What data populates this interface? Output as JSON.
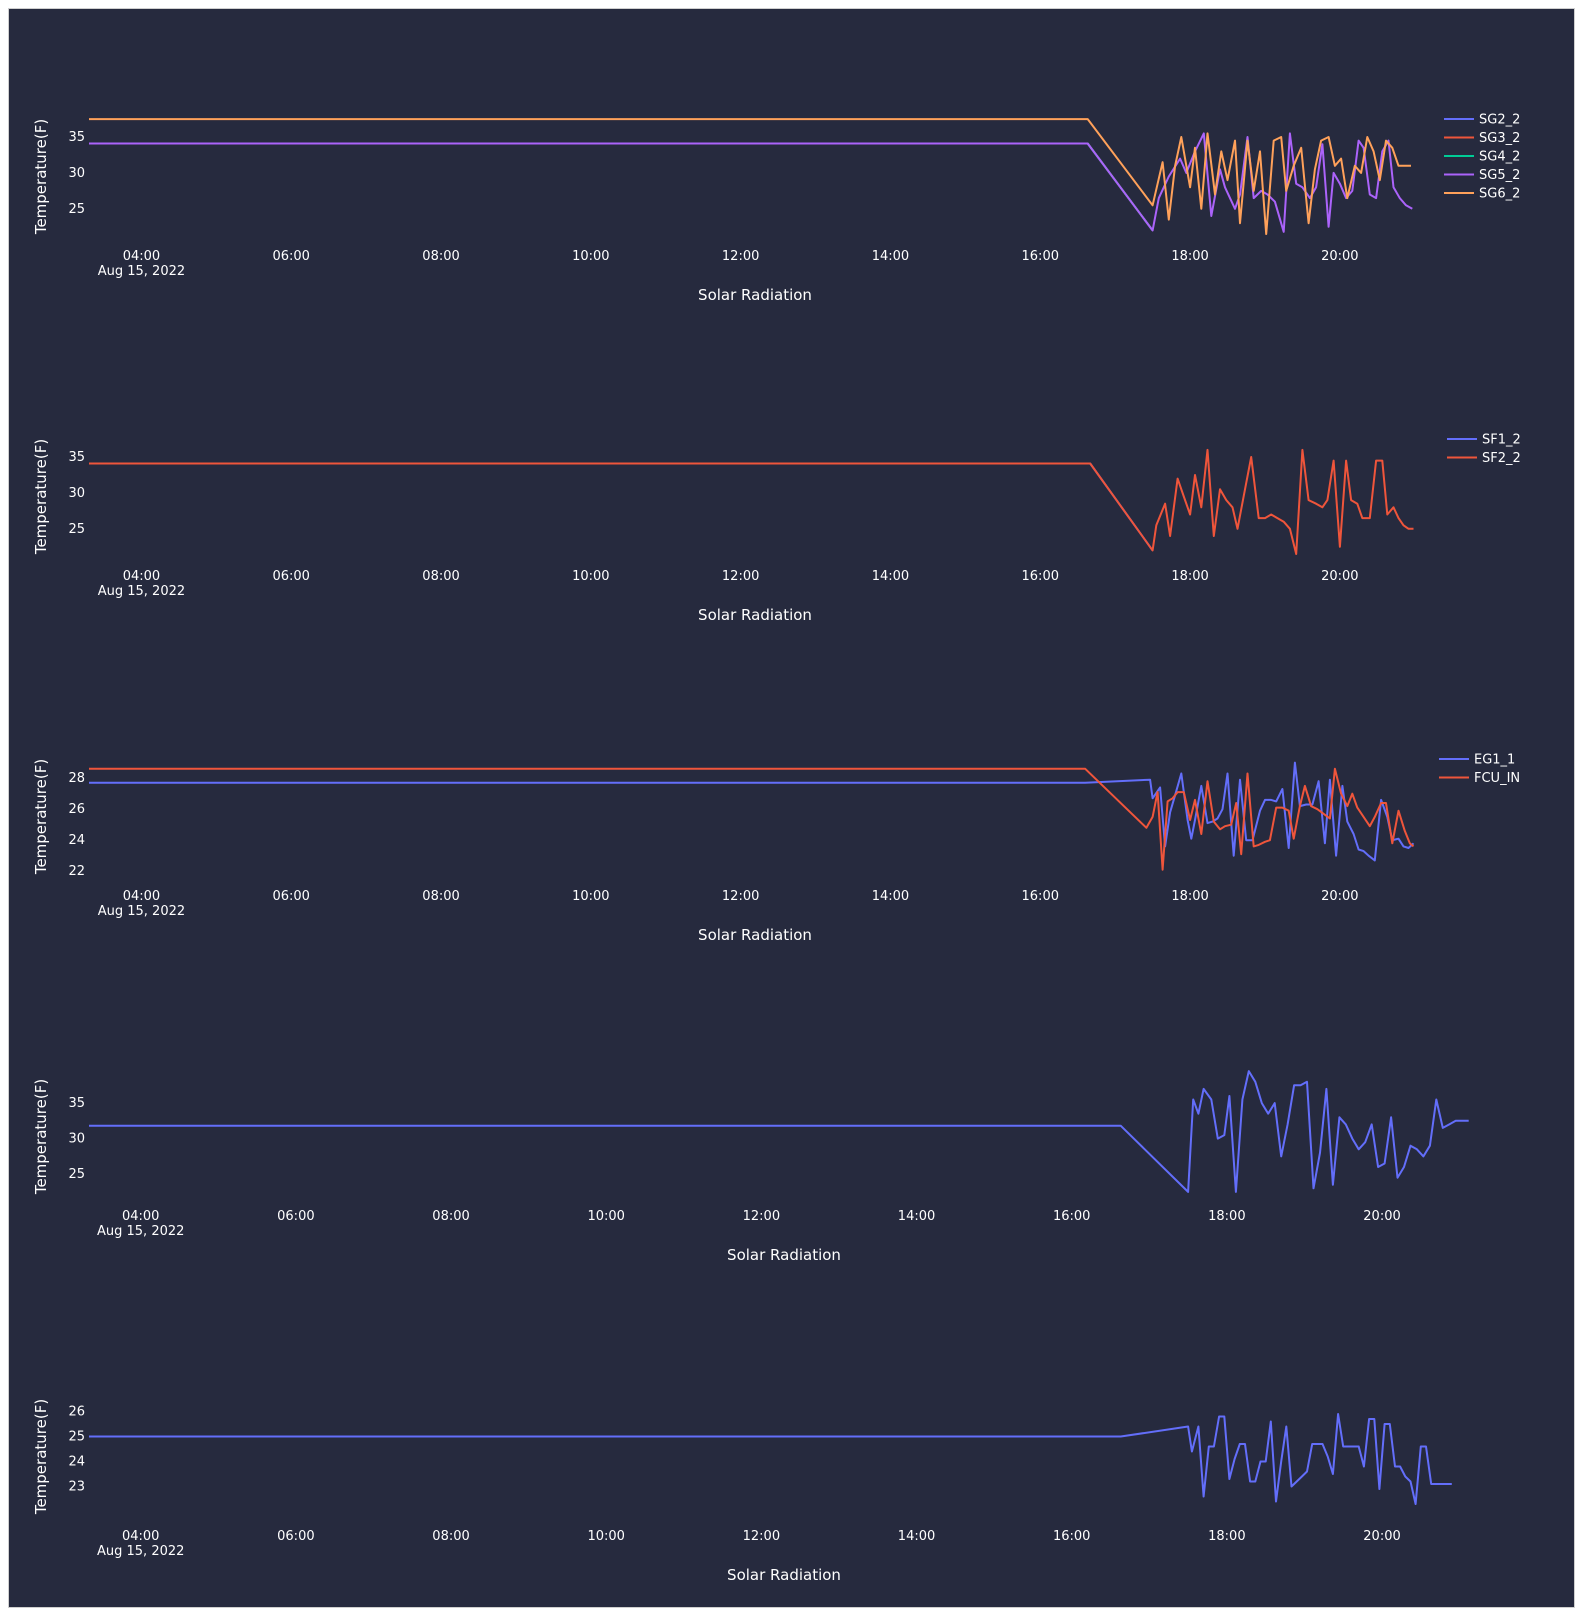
{
  "chart_data": [
    {
      "type": "line",
      "xlabel": "Solar Radiation",
      "ylabel": "Temperature(F)",
      "xlim": [
        "03:18",
        "21:05"
      ],
      "ylim": [
        20.8,
        39.6
      ],
      "xticks": [
        "04:00",
        "06:00",
        "08:00",
        "10:00",
        "12:00",
        "14:00",
        "16:00",
        "18:00",
        "20:00"
      ],
      "xtick_sublabel": "Aug 15, 2022",
      "yticks": [
        25,
        30,
        35
      ],
      "legend_position": "right",
      "series": [
        {
          "name": "SG2_2",
          "color": "#636efa",
          "x": [
            "03:18",
            "16:38",
            "17:30"
          ],
          "y": [
            34.1,
            34.1,
            22.0
          ]
        },
        {
          "name": "SG3_2",
          "color": "#ef553b",
          "x": [
            "03:18",
            "16:38",
            "17:30"
          ],
          "y": [
            34.1,
            34.1,
            22.0
          ]
        },
        {
          "name": "SG4_2",
          "color": "#00cc96",
          "x": [
            "03:18",
            "16:38",
            "17:30"
          ],
          "y": [
            34.1,
            34.1,
            22.0
          ]
        },
        {
          "name": "SG5_2",
          "color": "#ab63fa",
          "x": [
            "03:18",
            "16:38",
            "17:30",
            "17:35",
            "17:43",
            "17:52",
            "17:57",
            "18:04",
            "18:11",
            "18:17",
            "18:24",
            "18:28",
            "18:32",
            "18:36",
            "18:40",
            "18:46",
            "18:51",
            "18:57",
            "19:02",
            "19:08",
            "19:15",
            "19:20",
            "19:25",
            "19:30",
            "19:36",
            "19:41",
            "19:46",
            "19:51",
            "19:55",
            "20:00",
            "20:05",
            "20:10",
            "20:15",
            "20:19",
            "20:24",
            "20:29",
            "20:34",
            "20:39",
            "20:43",
            "20:48",
            "20:53",
            "20:58"
          ],
          "y": [
            34.1,
            34.1,
            22.0,
            26.5,
            29.5,
            32.0,
            30.0,
            33.0,
            35.5,
            24.0,
            30.5,
            28.0,
            26.5,
            25.0,
            27.0,
            35.0,
            26.5,
            27.5,
            27.0,
            26.0,
            21.8,
            35.5,
            28.5,
            28.0,
            26.5,
            28.0,
            34.0,
            22.5,
            30.0,
            28.5,
            26.5,
            27.5,
            34.5,
            33.5,
            27.0,
            26.5,
            33.0,
            34.5,
            28.0,
            26.5,
            25.5,
            25.0
          ]
        },
        {
          "name": "SG6_2",
          "color": "#ffa15a",
          "x": [
            "03:18",
            "16:38",
            "17:30",
            "17:38",
            "17:43",
            "17:48",
            "17:53",
            "18:00",
            "18:04",
            "18:09",
            "18:14",
            "18:20",
            "18:25",
            "18:30",
            "18:36",
            "18:40",
            "18:46",
            "18:51",
            "18:56",
            "19:01",
            "19:07",
            "19:13",
            "19:17",
            "19:23",
            "19:29",
            "19:35",
            "19:40",
            "19:45",
            "19:51",
            "19:56",
            "20:01",
            "20:06",
            "20:12",
            "20:17",
            "20:22",
            "20:27",
            "20:32",
            "20:37",
            "20:42",
            "20:47",
            "20:52",
            "20:57"
          ],
          "y": [
            37.5,
            37.5,
            25.5,
            31.5,
            23.5,
            31.0,
            35.0,
            28.0,
            33.5,
            25.0,
            35.5,
            27.0,
            33.0,
            29.0,
            34.5,
            23.0,
            34.5,
            27.5,
            33.0,
            21.5,
            34.5,
            35.0,
            27.5,
            31.0,
            33.5,
            23.0,
            30.5,
            34.5,
            35.0,
            31.0,
            32.0,
            26.5,
            31.0,
            30.0,
            35.0,
            33.0,
            29.0,
            34.5,
            33.5,
            31.0,
            31.0,
            31.0
          ]
        }
      ]
    },
    {
      "type": "line",
      "xlabel": "Solar Radiation",
      "ylabel": "Temperature(F)",
      "xlim": [
        "03:18",
        "21:05"
      ],
      "ylim": [
        20.8,
        39.6
      ],
      "xticks": [
        "04:00",
        "06:00",
        "08:00",
        "10:00",
        "12:00",
        "14:00",
        "16:00",
        "18:00",
        "20:00"
      ],
      "xtick_sublabel": "Aug 15, 2022",
      "yticks": [
        25,
        30,
        35
      ],
      "legend_position": "right",
      "series": [
        {
          "name": "SF1_2",
          "color": "#636efa",
          "x": [
            "03:18",
            "16:40",
            "17:30"
          ],
          "y": [
            34.1,
            34.1,
            22.0
          ]
        },
        {
          "name": "SF2_2",
          "color": "#ef553b",
          "x": [
            "03:18",
            "16:40",
            "17:30",
            "17:33",
            "17:40",
            "17:44",
            "17:50",
            "17:55",
            "18:00",
            "18:04",
            "18:09",
            "18:14",
            "18:19",
            "18:24",
            "18:29",
            "18:34",
            "18:38",
            "18:44",
            "18:49",
            "18:55",
            "19:00",
            "19:05",
            "19:10",
            "19:15",
            "19:20",
            "19:25",
            "19:30",
            "19:35",
            "19:41",
            "19:46",
            "19:50",
            "19:55",
            "20:00",
            "20:05",
            "20:09",
            "20:14",
            "20:18",
            "20:24",
            "20:29",
            "20:34",
            "20:38",
            "20:43",
            "20:47",
            "20:51",
            "20:55",
            "20:59"
          ],
          "y": [
            34.1,
            34.1,
            22.0,
            25.5,
            28.5,
            24.0,
            32.0,
            29.5,
            27.0,
            32.5,
            28.0,
            36.0,
            24.0,
            30.5,
            29.0,
            28.0,
            25.0,
            30.5,
            35.0,
            26.5,
            26.5,
            27.0,
            26.5,
            26.0,
            25.0,
            21.5,
            36.0,
            29.0,
            28.5,
            28.0,
            29.0,
            34.5,
            22.5,
            34.5,
            29.0,
            28.5,
            26.5,
            26.5,
            34.5,
            34.5,
            27.0,
            28.0,
            26.5,
            25.5,
            25.0,
            25.0
          ]
        }
      ]
    },
    {
      "type": "line",
      "xlabel": "Solar Radiation",
      "ylabel": "Temperature(F)",
      "xlim": [
        "03:18",
        "21:05"
      ],
      "ylim": [
        21.5,
        30.2
      ],
      "xticks": [
        "04:00",
        "06:00",
        "08:00",
        "10:00",
        "12:00",
        "14:00",
        "16:00",
        "18:00",
        "20:00"
      ],
      "xtick_sublabel": "Aug 15, 2022",
      "yticks": [
        22,
        24,
        26,
        28
      ],
      "legend_position": "right",
      "series": [
        {
          "name": "EG1_1",
          "color": "#636efa",
          "x": [
            "03:18",
            "16:36",
            "17:28",
            "17:30",
            "17:36",
            "17:40",
            "17:44",
            "17:48",
            "17:53",
            "17:58",
            "18:01",
            "18:04",
            "18:09",
            "18:14",
            "18:18",
            "18:22",
            "18:26",
            "18:30",
            "18:35",
            "18:40",
            "18:45",
            "18:50",
            "18:56",
            "19:00",
            "19:05",
            "19:09",
            "19:14",
            "19:19",
            "19:24",
            "19:28",
            "19:33",
            "19:38",
            "19:43",
            "19:48",
            "19:52",
            "19:57",
            "20:02",
            "20:06",
            "20:11",
            "20:15",
            "20:19",
            "20:23",
            "20:28",
            "20:33",
            "20:38",
            "20:42",
            "20:47",
            "20:51",
            "20:55",
            "20:59"
          ],
          "y": [
            27.7,
            27.7,
            27.9,
            26.7,
            27.4,
            23.6,
            25.8,
            26.9,
            28.3,
            25.3,
            24.1,
            25.3,
            27.5,
            25.1,
            25.2,
            25.4,
            26.0,
            28.3,
            23.0,
            27.9,
            24.0,
            24.0,
            25.9,
            26.6,
            26.6,
            26.5,
            27.3,
            23.5,
            29.0,
            26.2,
            26.3,
            26.3,
            27.8,
            23.8,
            27.9,
            23.0,
            27.5,
            25.2,
            24.4,
            23.4,
            23.3,
            23.0,
            22.7,
            26.6,
            25.5,
            24.0,
            24.1,
            23.6,
            23.5,
            23.8
          ]
        },
        {
          "name": "FCU_IN",
          "color": "#ef553b",
          "x": [
            "03:18",
            "16:36",
            "17:25",
            "17:30",
            "17:34",
            "17:38",
            "17:42",
            "17:46",
            "17:50",
            "17:55",
            "18:00",
            "18:04",
            "18:09",
            "18:14",
            "18:19",
            "18:24",
            "18:28",
            "18:33",
            "18:37",
            "18:41",
            "18:46",
            "18:51",
            "18:55",
            "19:00",
            "19:04",
            "19:09",
            "19:14",
            "19:19",
            "19:23",
            "19:28",
            "19:32",
            "19:37",
            "19:42",
            "19:47",
            "19:52",
            "19:56",
            "20:01",
            "20:06",
            "20:10",
            "20:14",
            "20:19",
            "20:24",
            "20:28",
            "20:33",
            "20:37",
            "20:42",
            "20:47",
            "20:52",
            "20:56",
            "20:59"
          ],
          "y": [
            28.6,
            28.6,
            24.8,
            25.5,
            27.1,
            22.1,
            26.5,
            26.7,
            27.1,
            27.1,
            25.3,
            26.6,
            24.4,
            27.8,
            25.2,
            24.7,
            24.9,
            25.0,
            26.4,
            23.1,
            28.3,
            23.6,
            23.7,
            23.9,
            24.0,
            26.1,
            26.1,
            25.9,
            24.1,
            26.2,
            27.5,
            26.2,
            26.0,
            25.7,
            25.4,
            28.6,
            27.0,
            26.2,
            27.0,
            26.1,
            25.5,
            24.9,
            25.5,
            26.4,
            26.4,
            23.8,
            25.9,
            24.6,
            23.8,
            23.6
          ]
        }
      ]
    },
    {
      "type": "line",
      "xlabel": "Solar Radiation",
      "ylabel": "Temperature(F)",
      "xlim": [
        "03:20",
        "21:15"
      ],
      "ylim": [
        21.5,
        40.5
      ],
      "xticks": [
        "04:00",
        "06:00",
        "08:00",
        "10:00",
        "12:00",
        "14:00",
        "16:00",
        "18:00",
        "20:00"
      ],
      "xtick_sublabel": "Aug 15, 2022",
      "yticks": [
        25,
        30,
        35
      ],
      "series": [
        {
          "name": "",
          "color": "#636efa",
          "x": [
            "03:20",
            "16:38",
            "17:30",
            "17:34",
            "17:38",
            "17:42",
            "17:48",
            "17:53",
            "17:58",
            "18:02",
            "18:07",
            "18:12",
            "18:17",
            "18:22",
            "18:27",
            "18:32",
            "18:37",
            "18:42",
            "18:47",
            "18:52",
            "18:57",
            "19:02",
            "19:07",
            "19:12",
            "19:17",
            "19:22",
            "19:27",
            "19:32",
            "19:37",
            "19:42",
            "19:47",
            "19:52",
            "19:57",
            "20:02",
            "20:07",
            "20:12",
            "20:17",
            "20:22",
            "20:27",
            "20:32",
            "20:37",
            "20:42",
            "20:47",
            "20:52",
            "20:57",
            "21:02",
            "21:07"
          ],
          "y": [
            31.8,
            31.8,
            22.5,
            35.5,
            33.5,
            37.0,
            35.5,
            30.0,
            30.5,
            36.0,
            22.5,
            35.5,
            39.5,
            38.0,
            35.0,
            33.5,
            35.0,
            27.5,
            32.0,
            37.5,
            37.5,
            38.0,
            23.0,
            28.0,
            37.0,
            23.5,
            33.0,
            32.0,
            30.0,
            28.5,
            29.5,
            32.0,
            26.0,
            26.5,
            33.0,
            24.5,
            26.0,
            29.0,
            28.5,
            27.5,
            29.0,
            35.5,
            31.5,
            32.0,
            32.5,
            32.5,
            32.5
          ]
        }
      ]
    },
    {
      "type": "line",
      "xlabel": "Solar Radiation",
      "ylabel": "Temperature(F)",
      "xlim": [
        "03:20",
        "21:15"
      ],
      "ylim": [
        21.7,
        27.1
      ],
      "xticks": [
        "04:00",
        "06:00",
        "08:00",
        "10:00",
        "12:00",
        "14:00",
        "16:00",
        "18:00",
        "20:00"
      ],
      "xtick_sublabel": "Aug 15, 2022",
      "yticks": [
        23,
        24,
        25,
        26
      ],
      "series": [
        {
          "name": "",
          "color": "#636efa",
          "x": [
            "03:20",
            "16:38",
            "17:30",
            "17:33",
            "17:38",
            "17:42",
            "17:46",
            "17:50",
            "17:54",
            "17:58",
            "18:02",
            "18:06",
            "18:10",
            "18:14",
            "18:18",
            "18:22",
            "18:26",
            "18:30",
            "18:34",
            "18:38",
            "18:42",
            "18:46",
            "18:50",
            "18:54",
            "18:58",
            "19:02",
            "19:06",
            "19:10",
            "19:14",
            "19:18",
            "19:22",
            "19:26",
            "19:30",
            "19:34",
            "19:38",
            "19:42",
            "19:46",
            "19:50",
            "19:54",
            "19:58",
            "20:02",
            "20:06",
            "20:10",
            "20:14",
            "20:18",
            "20:22",
            "20:26",
            "20:30",
            "20:34",
            "20:38",
            "20:42",
            "20:46",
            "20:50",
            "20:54"
          ],
          "y": [
            25.0,
            25.0,
            25.4,
            24.4,
            25.4,
            22.6,
            24.6,
            24.6,
            25.8,
            25.8,
            23.3,
            24.1,
            24.7,
            24.7,
            23.2,
            23.2,
            24.0,
            24.0,
            25.6,
            22.4,
            24.0,
            25.4,
            23.0,
            23.2,
            23.4,
            23.6,
            24.7,
            24.7,
            24.7,
            24.2,
            23.5,
            25.9,
            24.6,
            24.6,
            24.6,
            24.6,
            23.8,
            25.7,
            25.7,
            22.9,
            25.5,
            25.5,
            23.8,
            23.8,
            23.4,
            23.2,
            22.3,
            24.6,
            24.6,
            23.1,
            23.1,
            23.1,
            23.1,
            23.1
          ]
        }
      ]
    }
  ]
}
